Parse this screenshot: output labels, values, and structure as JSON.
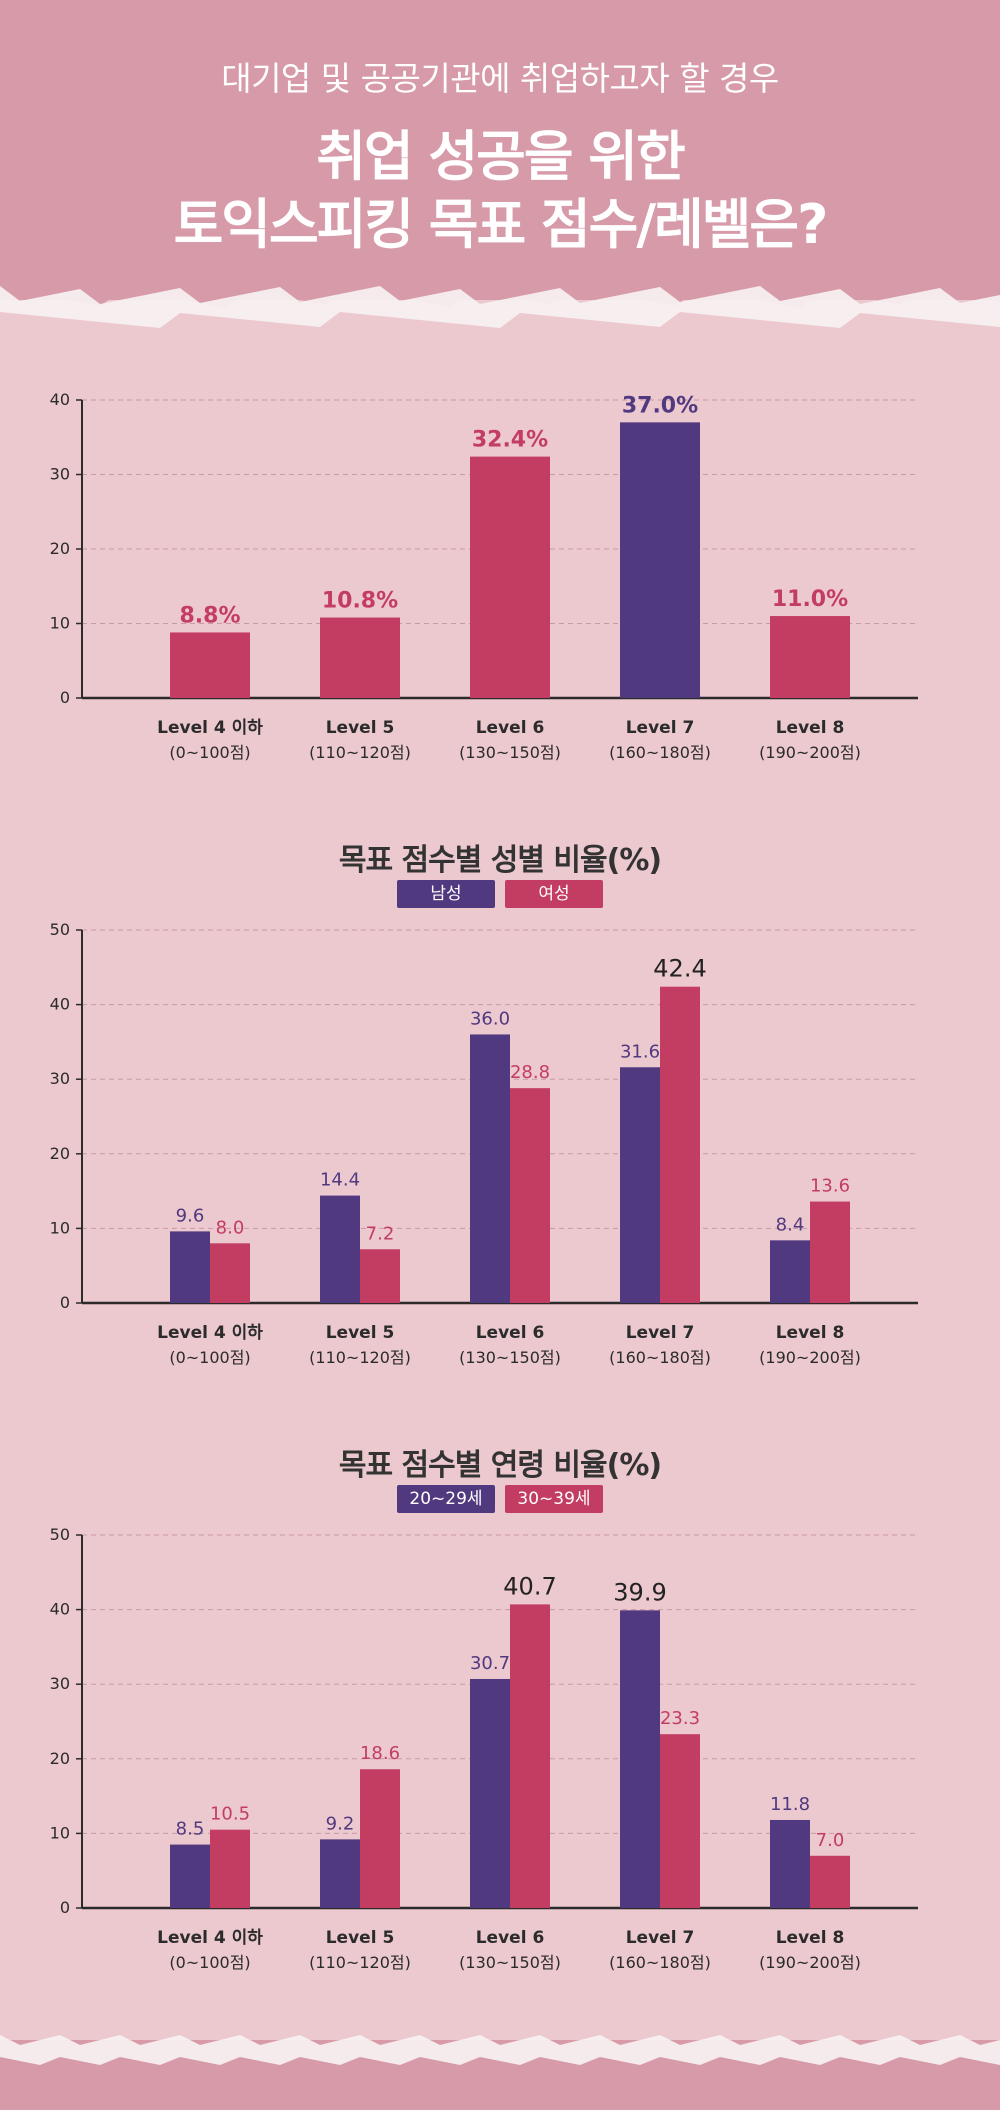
{
  "header": {
    "subtitle": "대기업 및 공공기관에 취업하고자 할 경우",
    "title_line1": "취업 성공을 위한",
    "title_line2": "토익스피킹 목표 점수/레벨은?"
  },
  "colors": {
    "purple": "#51397f",
    "pink": "#c33d62",
    "header_bg": "#d79aa8",
    "page_bg": "#ecc8cf"
  },
  "chart_data": [
    {
      "type": "bar",
      "categories": [
        {
          "level": "Level 4 이하",
          "range": "(0~100점)"
        },
        {
          "level": "Level 5",
          "range": "(110~120점)"
        },
        {
          "level": "Level 6",
          "range": "(130~150점)"
        },
        {
          "level": "Level 7",
          "range": "(160~180점)"
        },
        {
          "level": "Level 8",
          "range": "(190~200점)"
        }
      ],
      "series": [
        {
          "values": [
            8.8,
            10.8,
            32.4,
            37.0,
            11.0
          ],
          "labels": [
            "8.8%",
            "10.8%",
            "32.4%",
            "37.0%",
            "11.0%"
          ],
          "highlight_index": 3
        }
      ],
      "ylim": [
        0,
        40
      ],
      "yticks": [
        0,
        10,
        20,
        30,
        40
      ],
      "grid": true
    },
    {
      "type": "bar",
      "title": "목표 점수별 성별 비율(%)",
      "categories": [
        {
          "level": "Level 4 이하",
          "range": "(0~100점)"
        },
        {
          "level": "Level 5",
          "range": "(110~120점)"
        },
        {
          "level": "Level 6",
          "range": "(130~150점)"
        },
        {
          "level": "Level 7",
          "range": "(160~180점)"
        },
        {
          "level": "Level 8",
          "range": "(190~200점)"
        }
      ],
      "series": [
        {
          "name": "남성",
          "values": [
            9.6,
            14.4,
            36.0,
            31.6,
            8.4
          ],
          "labels": [
            "9.6",
            "14.4",
            "36.0",
            "31.6",
            "8.4"
          ]
        },
        {
          "name": "여성",
          "values": [
            8.0,
            7.2,
            28.8,
            42.4,
            13.6
          ],
          "labels": [
            "8.0",
            "7.2",
            "28.8",
            "42.4",
            "13.6"
          ]
        }
      ],
      "ylim": [
        0,
        50
      ],
      "yticks": [
        0,
        10,
        20,
        30,
        40,
        50
      ],
      "grid": true,
      "legend": "top-center"
    },
    {
      "type": "bar",
      "title": "목표 점수별 연령 비율(%)",
      "categories": [
        {
          "level": "Level 4 이하",
          "range": "(0~100점)"
        },
        {
          "level": "Level 5",
          "range": "(110~120점)"
        },
        {
          "level": "Level 6",
          "range": "(130~150점)"
        },
        {
          "level": "Level 7",
          "range": "(160~180점)"
        },
        {
          "level": "Level 8",
          "range": "(190~200점)"
        }
      ],
      "series": [
        {
          "name": "20~29세",
          "values": [
            8.5,
            9.2,
            30.7,
            39.9,
            11.8
          ],
          "labels": [
            "8.5",
            "9.2",
            "30.7",
            "39.9",
            "11.8"
          ]
        },
        {
          "name": "30~39세",
          "values": [
            10.5,
            18.6,
            40.7,
            23.3,
            7.0
          ],
          "labels": [
            "10.5",
            "18.6",
            "40.7",
            "23.3",
            "7.0"
          ]
        }
      ],
      "ylim": [
        0,
        50
      ],
      "yticks": [
        0,
        10,
        20,
        30,
        40,
        50
      ],
      "grid": true,
      "legend": "top-center"
    }
  ]
}
